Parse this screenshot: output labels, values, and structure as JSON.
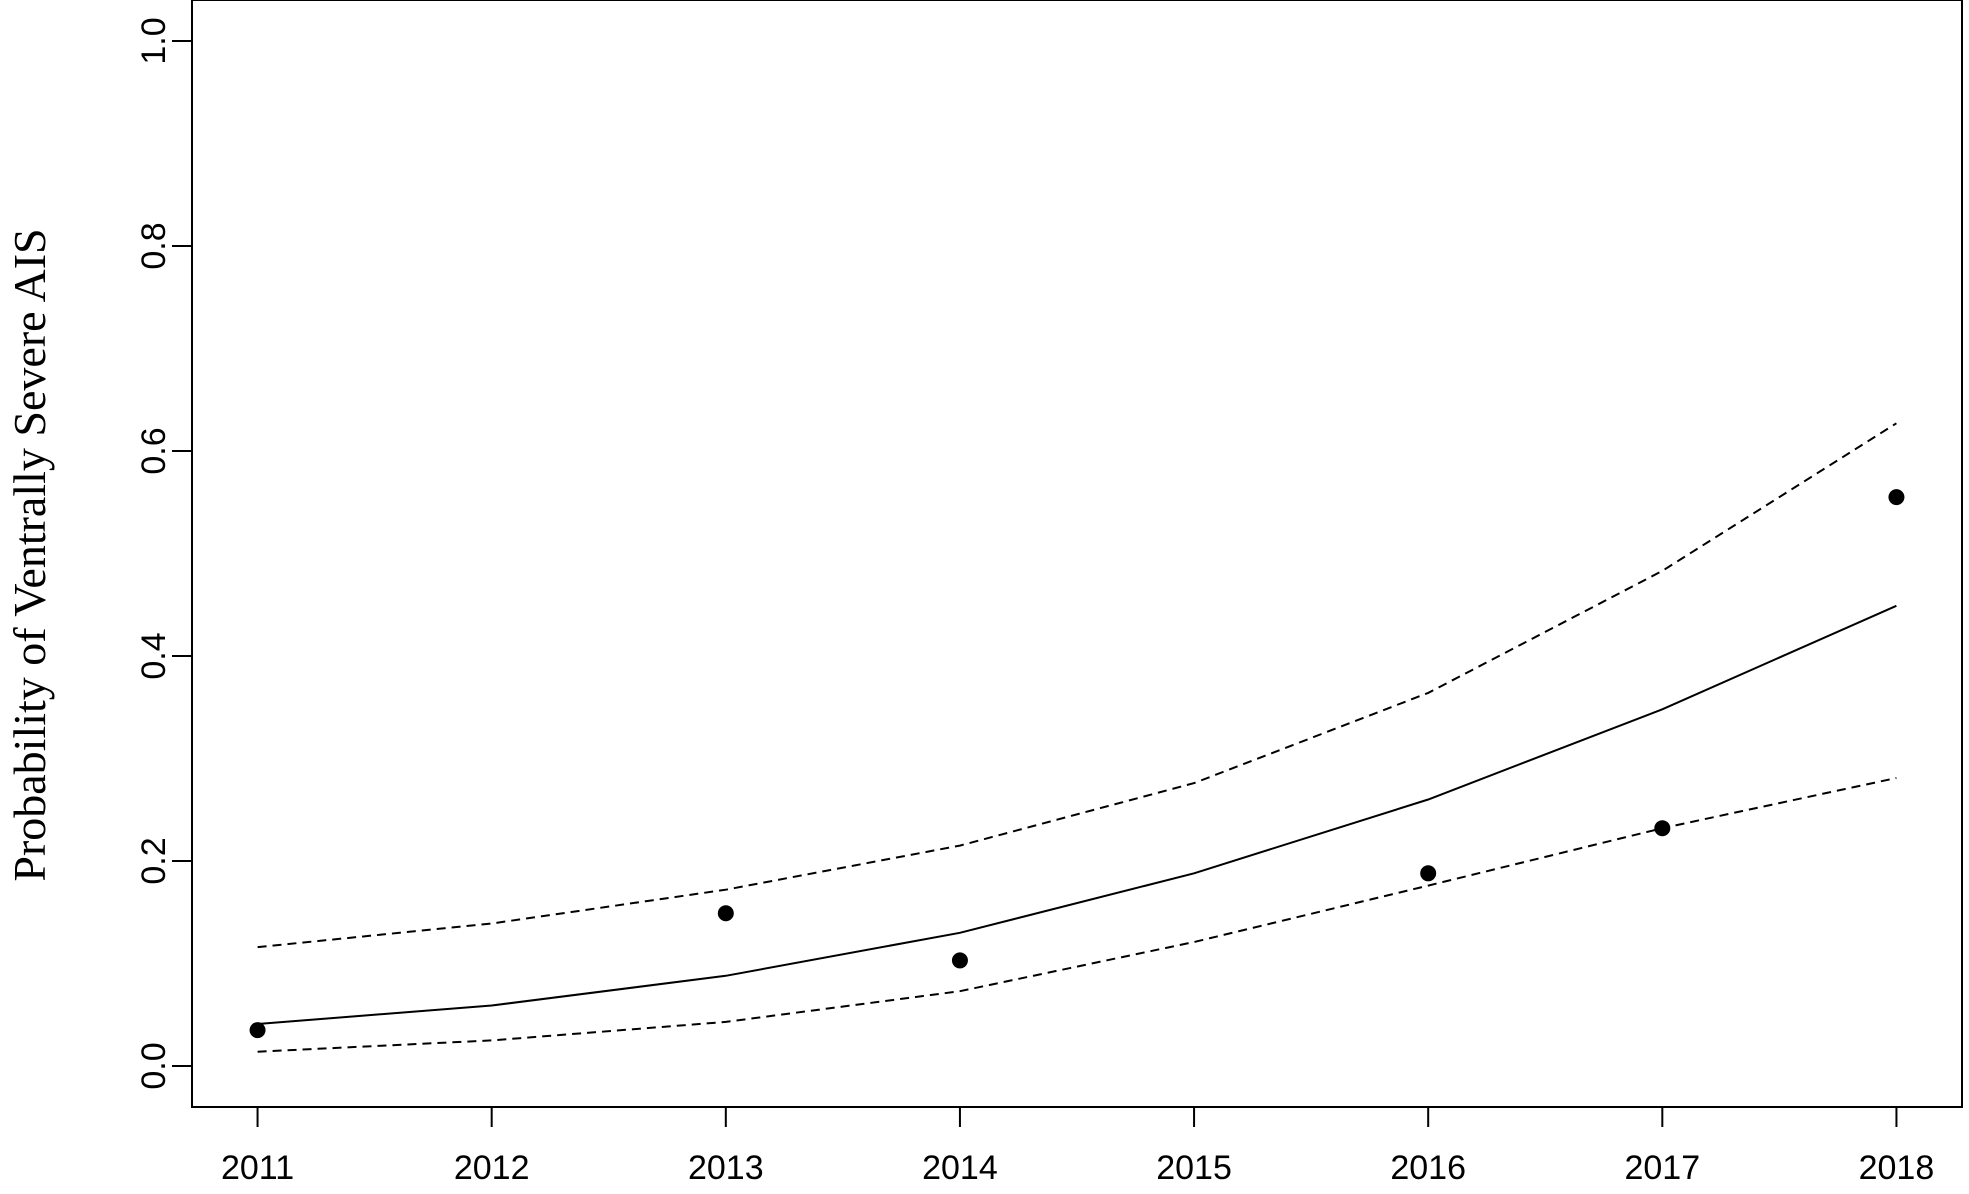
{
  "chart_data": {
    "type": "line",
    "title": "",
    "xlabel": "",
    "ylabel": "Probability of Ventrally Severe AIS",
    "xlim": [
      2010.72,
      2018.28
    ],
    "ylim": [
      -0.04,
      1.04
    ],
    "x_ticks": [
      2011,
      2012,
      2013,
      2014,
      2015,
      2016,
      2017,
      2018
    ],
    "x_tick_labels": [
      "2011",
      "2012",
      "2013",
      "2014",
      "2015",
      "2016",
      "2017",
      "2018"
    ],
    "y_ticks": [
      0.0,
      0.2,
      0.4,
      0.6,
      0.8,
      1.0
    ],
    "y_tick_labels": [
      "0.0",
      "0.2",
      "0.4",
      "0.6",
      "0.8",
      "1.0"
    ],
    "grid": false,
    "legend": "none",
    "points": {
      "x": [
        2011,
        2013,
        2014,
        2016,
        2017,
        2018
      ],
      "y": [
        0.035,
        0.149,
        0.103,
        0.188,
        0.232,
        0.555
      ]
    },
    "series": [
      {
        "style": "solid",
        "x": [
          2011,
          2012,
          2013,
          2014,
          2015,
          2016,
          2017,
          2018
        ],
        "y": [
          0.041,
          0.059,
          0.088,
          0.13,
          0.188,
          0.26,
          0.348,
          0.449
        ]
      },
      {
        "style": "dashed",
        "x": [
          2011,
          2012,
          2013,
          2014,
          2015,
          2016,
          2017,
          2018
        ],
        "y": [
          0.116,
          0.139,
          0.172,
          0.215,
          0.276,
          0.364,
          0.483,
          0.627
        ]
      },
      {
        "style": "dashed",
        "x": [
          2011,
          2012,
          2013,
          2014,
          2015,
          2016,
          2017,
          2018
        ],
        "y": [
          0.014,
          0.025,
          0.043,
          0.073,
          0.121,
          0.176,
          0.232,
          0.281
        ]
      }
    ],
    "colors": {
      "line": "#000000",
      "point": "#000000",
      "axis": "#000000"
    }
  }
}
